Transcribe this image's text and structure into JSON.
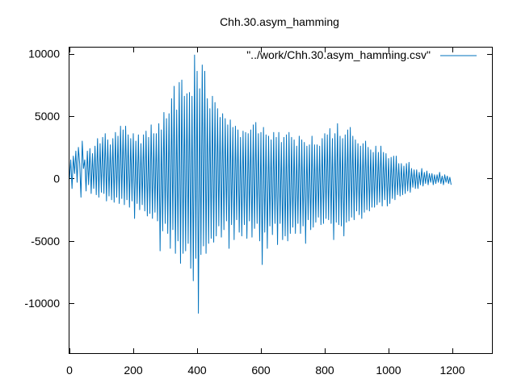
{
  "chart_data": {
    "type": "line",
    "title": "Chh.30.asym_hamming",
    "xlabel": "",
    "ylabel": "",
    "xlim": [
      0,
      1324
    ],
    "ylim": [
      -14000,
      10500
    ],
    "x_ticks": [
      0,
      200,
      400,
      600,
      800,
      1000,
      1200
    ],
    "y_ticks": [
      -10000,
      -5000,
      0,
      5000,
      10000
    ],
    "x_tick_labels": [
      "0",
      "200",
      "400",
      "600",
      "800",
      "1000",
      "1200"
    ],
    "y_tick_labels": [
      "-10000",
      "-5000",
      "0",
      "5000",
      "10000"
    ],
    "legend": {
      "position": "top-right"
    },
    "color": "#0072bd",
    "series": [
      {
        "name": "\"../work/Chh.30.asym_hamming.csv\"",
        "x_start": 0,
        "x_step": 4,
        "values": [
          0,
          1500,
          -800,
          1800,
          400,
          2200,
          -300,
          2500,
          1200,
          -1500,
          3000,
          800,
          1500,
          -1000,
          2200,
          -500,
          2400,
          -1200,
          2000,
          -800,
          2600,
          -1300,
          3200,
          -1500,
          2800,
          -1100,
          3300,
          -1200,
          3600,
          -1800,
          3100,
          -1400,
          2700,
          -1700,
          3200,
          -1900,
          3700,
          -1500,
          3400,
          -2000,
          4200,
          -1600,
          3900,
          -2100,
          4200,
          -1700,
          3500,
          -2300,
          3200,
          -1800,
          3600,
          -3200,
          3000,
          -2000,
          3500,
          -2500,
          2800,
          -2100,
          3500,
          -2600,
          3800,
          -3000,
          3300,
          -2800,
          4300,
          -3200,
          3600,
          -2700,
          3600,
          -3400,
          4400,
          -5800,
          3900,
          -4200,
          5300,
          -3600,
          4800,
          -4400,
          5200,
          -5600,
          6400,
          -4100,
          7400,
          -6000,
          5500,
          -5000,
          7700,
          -6800,
          7900,
          -6000,
          6600,
          -5800,
          6800,
          -5200,
          6900,
          -7200,
          6600,
          -8200,
          9900,
          -6400,
          8600,
          -10800,
          7200,
          -6100,
          9100,
          -5400,
          8600,
          -6000,
          6400,
          -5200,
          5600,
          -4800,
          6600,
          -5100,
          6100,
          -4600,
          5600,
          -3800,
          4900,
          -4700,
          5200,
          -4100,
          4800,
          -3400,
          4300,
          -5600,
          4700,
          -3700,
          4100,
          -4900,
          4200,
          -3300,
          3900,
          -4300,
          3300,
          -4600,
          3800,
          -3700,
          3700,
          -4800,
          3600,
          -3400,
          3900,
          -4700,
          4300,
          -4000,
          4500,
          -3600,
          3600,
          -5000,
          3700,
          -6900,
          4100,
          -4300,
          3500,
          -5600,
          3400,
          -3800,
          3100,
          -4500,
          3700,
          -3600,
          3300,
          -5300,
          3700,
          -3600,
          2900,
          -4900,
          3300,
          -4600,
          3500,
          -5000,
          3700,
          -4400,
          3300,
          -3900,
          3100,
          -4400,
          2600,
          -3600,
          3400,
          -4400,
          3100,
          -3800,
          2900,
          -5200,
          2600,
          -3300,
          2700,
          -4100,
          3400,
          -3900,
          2700,
          -3500,
          2700,
          -3100,
          2600,
          -3700,
          3200,
          -3600,
          3600,
          -3200,
          3500,
          -3300,
          4000,
          -3600,
          3200,
          -4900,
          3600,
          -3500,
          4400,
          -3700,
          3400,
          -3800,
          3200,
          -4600,
          3500,
          -3500,
          3900,
          -3400,
          4100,
          -3100,
          3400,
          -3300,
          3100,
          -2600,
          2800,
          -2900,
          2600,
          -3200,
          2800,
          -2700,
          3000,
          -2500,
          2500,
          -2600,
          2300,
          -2300,
          2100,
          -2300,
          2600,
          -2100,
          2100,
          -1900,
          2600,
          -2200,
          2100,
          -1700,
          2000,
          -2200,
          1600,
          -2000,
          1700,
          -1600,
          1800,
          -1700,
          1800,
          -1300,
          1200,
          -1400,
          1200,
          -1300,
          1000,
          -1200,
          1200,
          -1000,
          1300,
          -1100,
          800,
          -700,
          700,
          -800,
          700,
          -800,
          500,
          -500,
          800,
          -600,
          500,
          -400,
          600,
          -500,
          400,
          -300,
          400,
          -500,
          300,
          -400,
          300,
          -300,
          500,
          -400,
          200,
          -500,
          300,
          -300,
          200,
          -400,
          100,
          -500
        ]
      }
    ]
  }
}
